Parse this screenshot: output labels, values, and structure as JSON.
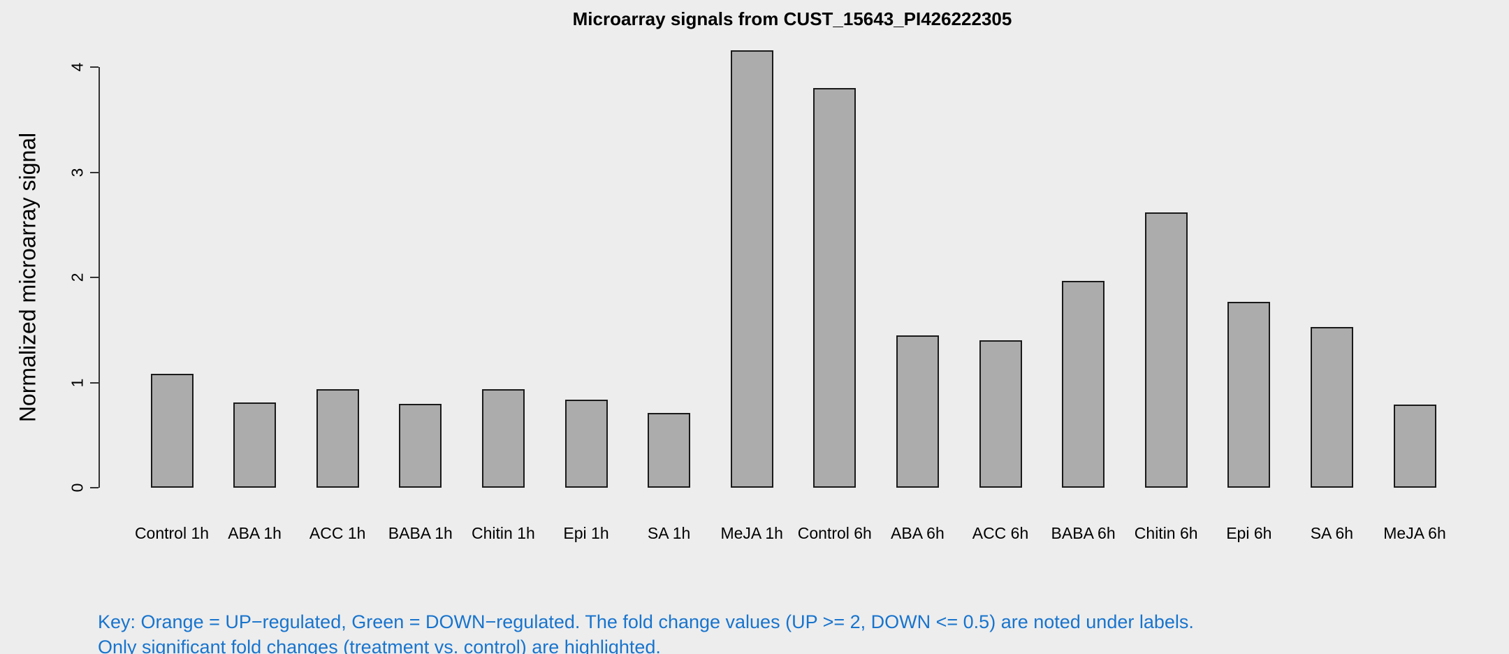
{
  "page": {
    "background": "#EDEDED"
  },
  "chart_data": {
    "type": "bar",
    "title": "Microarray signals from CUST_15643_PI426222305",
    "ylabel": "Normalized microarray signal",
    "xlabel": "",
    "categories": [
      "Control 1h",
      "ABA 1h",
      "ACC 1h",
      "BABA 1h",
      "Chitin 1h",
      "Epi 1h",
      "SA 1h",
      "MeJA 1h",
      "Control 6h",
      "ABA 6h",
      "ACC 6h",
      "BABA 6h",
      "Chitin 6h",
      "Epi 6h",
      "SA 6h",
      "MeJA 6h"
    ],
    "values": [
      1.08,
      0.81,
      0.94,
      0.8,
      0.94,
      0.84,
      0.71,
      4.16,
      3.8,
      1.45,
      1.4,
      1.97,
      2.62,
      1.77,
      1.53,
      0.79
    ],
    "yticks": [
      0,
      1,
      2,
      3,
      4
    ],
    "ylim": [
      0,
      4.16
    ],
    "grid": false,
    "legend": "none",
    "bar_fill": "#ACACAC",
    "bar_border": "#1A1A1A",
    "axis_color": "#333333",
    "text_color": "#000000"
  },
  "annotation": {
    "line1": "Key: Orange = UP−regulated, Green = DOWN−regulated. The fold change values (UP >= 2, DOWN <= 0.5) are noted under labels.",
    "line2": "Only significant fold changes (treatment vs. control) are highlighted.",
    "color": "#1874CD"
  }
}
